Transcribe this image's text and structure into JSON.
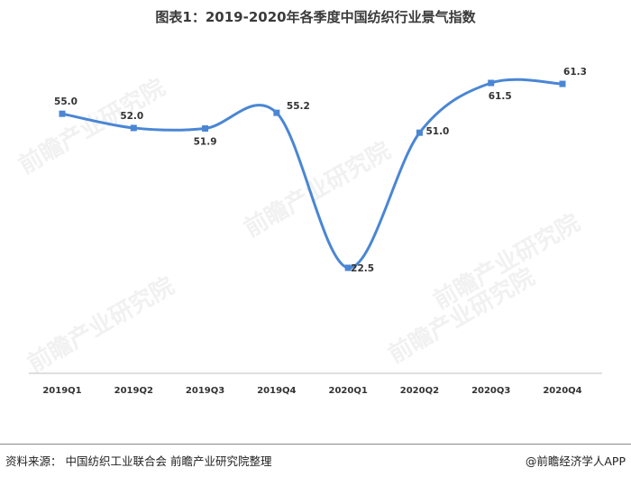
{
  "title": "图表1：2019-2020年各季度中国纺织行业景气指数",
  "source": "资料来源：  中国纺织工业联合会  前瞻产业研究院整理",
  "brand": "@前瞻经济学人APP",
  "watermark": "前瞻产业研究院",
  "colors": {
    "line": "#4a86d4",
    "marker": "#4a86d4",
    "axis": "#bfbfbf",
    "text": "#333333"
  },
  "chart_data": {
    "type": "line",
    "categories": [
      "2019Q1",
      "2019Q2",
      "2019Q3",
      "2019Q4",
      "2020Q1",
      "2020Q2",
      "2020Q3",
      "2020Q4"
    ],
    "series": [
      {
        "values": [
          55.0,
          52.0,
          51.9,
          55.2,
          22.5,
          51.0,
          61.5,
          61.3
        ],
        "labels": [
          "55.0",
          "52.0",
          "51.9",
          "55.2",
          "22.5",
          "51.0",
          "61.5",
          "61.3"
        ]
      }
    ],
    "smooth": true,
    "grid": false,
    "legend": "none"
  }
}
